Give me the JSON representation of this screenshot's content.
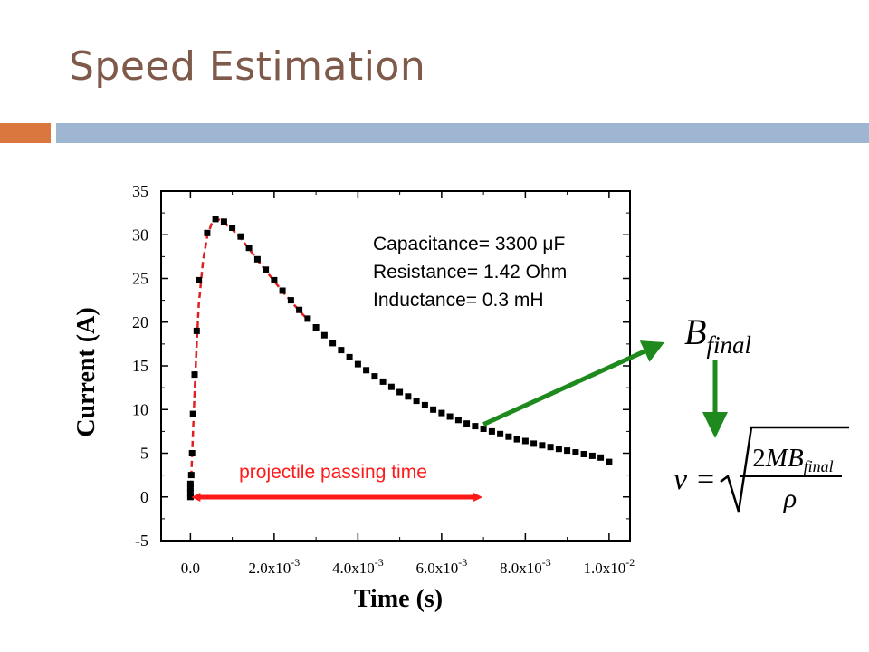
{
  "slide": {
    "title": "Speed Estimation"
  },
  "chart_data": {
    "type": "scatter",
    "title": "",
    "xlabel": "Time (s)",
    "ylabel": "Current (A)",
    "xlim": [
      -0.0007,
      0.0105
    ],
    "ylim": [
      -5,
      35
    ],
    "x_ticks": [
      {
        "value": 0.0,
        "label": "0.0"
      },
      {
        "value": 0.002,
        "label": "2.0x10",
        "exp": "-3"
      },
      {
        "value": 0.004,
        "label": "4.0x10",
        "exp": "-3"
      },
      {
        "value": 0.006,
        "label": "6.0x10",
        "exp": "-3"
      },
      {
        "value": 0.008,
        "label": "8.0x10",
        "exp": "-3"
      },
      {
        "value": 0.01,
        "label": "1.0x10",
        "exp": "-2"
      }
    ],
    "y_ticks": [
      {
        "value": 35,
        "label": "35"
      },
      {
        "value": 30,
        "label": "30"
      },
      {
        "value": 25,
        "label": "25"
      },
      {
        "value": 20,
        "label": "20"
      },
      {
        "value": 15,
        "label": "15"
      },
      {
        "value": 10,
        "label": "10"
      },
      {
        "value": 5,
        "label": "5"
      },
      {
        "value": 0,
        "label": "0"
      },
      {
        "value": -5,
        "label": "-5"
      }
    ],
    "series": [
      {
        "marker": "square",
        "color": "#000000",
        "points": [
          [
            0,
            0
          ],
          [
            0,
            0.5
          ],
          [
            0,
            1.0
          ],
          [
            0,
            1.5
          ],
          [
            2e-05,
            2.5
          ],
          [
            4e-05,
            5.0
          ],
          [
            6e-05,
            9.5
          ],
          [
            0.0001,
            14.0
          ],
          [
            0.00015,
            19.0
          ],
          [
            0.0002,
            24.8
          ],
          [
            0.0004,
            30.2
          ],
          [
            0.0006,
            31.8
          ],
          [
            0.0008,
            31.5
          ],
          [
            0.001,
            30.8
          ],
          [
            0.0012,
            29.8
          ],
          [
            0.0014,
            28.5
          ],
          [
            0.0016,
            27.2
          ],
          [
            0.0018,
            26.0
          ],
          [
            0.002,
            24.8
          ],
          [
            0.0022,
            23.6
          ],
          [
            0.0024,
            22.5
          ],
          [
            0.0026,
            21.4
          ],
          [
            0.0028,
            20.4
          ],
          [
            0.003,
            19.4
          ],
          [
            0.0032,
            18.5
          ],
          [
            0.0034,
            17.6
          ],
          [
            0.0036,
            16.8
          ],
          [
            0.0038,
            16.0
          ],
          [
            0.004,
            15.2
          ],
          [
            0.0042,
            14.5
          ],
          [
            0.0044,
            13.8
          ],
          [
            0.0046,
            13.2
          ],
          [
            0.0048,
            12.6
          ],
          [
            0.005,
            12.0
          ],
          [
            0.0052,
            11.5
          ],
          [
            0.0054,
            11.0
          ],
          [
            0.0056,
            10.5
          ],
          [
            0.0058,
            10.0
          ],
          [
            0.006,
            9.6
          ],
          [
            0.0062,
            9.2
          ],
          [
            0.0064,
            8.8
          ],
          [
            0.0066,
            8.4
          ],
          [
            0.0068,
            8.1
          ],
          [
            0.007,
            7.8
          ],
          [
            0.0072,
            7.5
          ],
          [
            0.0074,
            7.2
          ],
          [
            0.0076,
            6.9
          ],
          [
            0.0078,
            6.6
          ],
          [
            0.008,
            6.4
          ],
          [
            0.0082,
            6.1
          ],
          [
            0.0084,
            5.9
          ],
          [
            0.0086,
            5.7
          ],
          [
            0.0088,
            5.5
          ],
          [
            0.009,
            5.3
          ],
          [
            0.0092,
            5.1
          ],
          [
            0.0094,
            4.9
          ],
          [
            0.0096,
            4.7
          ],
          [
            0.0098,
            4.5
          ],
          [
            0.01,
            4.0
          ]
        ]
      },
      {
        "style": "dashed",
        "color": "#e02020",
        "points": [
          [
            0,
            0
          ],
          [
            5e-05,
            6
          ],
          [
            0.0001,
            12
          ],
          [
            0.00015,
            17.5
          ],
          [
            0.0002,
            22
          ],
          [
            0.0003,
            27
          ],
          [
            0.0004,
            29.8
          ],
          [
            0.0005,
            31.2
          ],
          [
            0.0006,
            31.8
          ],
          [
            0.0007,
            31.7
          ],
          [
            0.0008,
            31.4
          ],
          [
            0.001,
            30.6
          ],
          [
            0.0012,
            29.6
          ],
          [
            0.0014,
            28.4
          ],
          [
            0.0016,
            27.1
          ],
          [
            0.0018,
            25.9
          ],
          [
            0.002,
            24.7
          ],
          [
            0.0022,
            23.5
          ],
          [
            0.0024,
            22.4
          ],
          [
            0.0026,
            21.3
          ],
          [
            0.0028,
            20.3
          ]
        ]
      }
    ],
    "annotations": {
      "circuit_lines": [
        "Capacitance= 3300 μF",
        "Resistance= 1.42 Ohm",
        "Inductance= 0.3 mH"
      ],
      "passing_label": "projectile passing time",
      "passing_range": [
        0,
        0.007
      ],
      "passing_color": "#ff1a1a",
      "pointer_color": "#1e8a1e",
      "pointer_from": [
        0.007,
        8.3
      ]
    }
  },
  "formula": {
    "b_symbol": "B",
    "b_subscript": "final",
    "v_symbol": "v",
    "equals": "=",
    "numerator_coeff": "2",
    "numerator_vars": "MB",
    "numerator_subscript": "final",
    "denominator": "ρ"
  }
}
